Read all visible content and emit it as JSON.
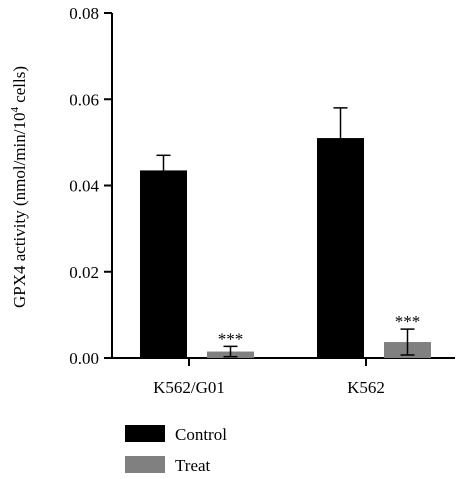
{
  "chart_data": {
    "type": "bar",
    "title": "",
    "xlabel": "",
    "ylabel_parts": [
      "GPX4 activity (nmol/min/10",
      "4",
      " cells)"
    ],
    "ylim": [
      0,
      0.08
    ],
    "yticks": [
      "0.00",
      "0.02",
      "0.04",
      "0.06",
      "0.08"
    ],
    "tick_values": [
      0,
      0.02,
      0.04,
      0.06,
      0.08
    ],
    "categories": [
      "K562/G01",
      "K562"
    ],
    "series": [
      {
        "name": "Control",
        "color": "#000000",
        "values": [
          0.0435,
          0.051
        ],
        "errors": [
          0.0035,
          0.007
        ]
      },
      {
        "name": "Treat",
        "color": "#808080",
        "values": [
          0.0015,
          0.0037
        ],
        "errors": [
          0.0012,
          0.003
        ]
      }
    ],
    "annotations": [
      "***",
      "***"
    ],
    "legend_position": "bottom-left"
  }
}
